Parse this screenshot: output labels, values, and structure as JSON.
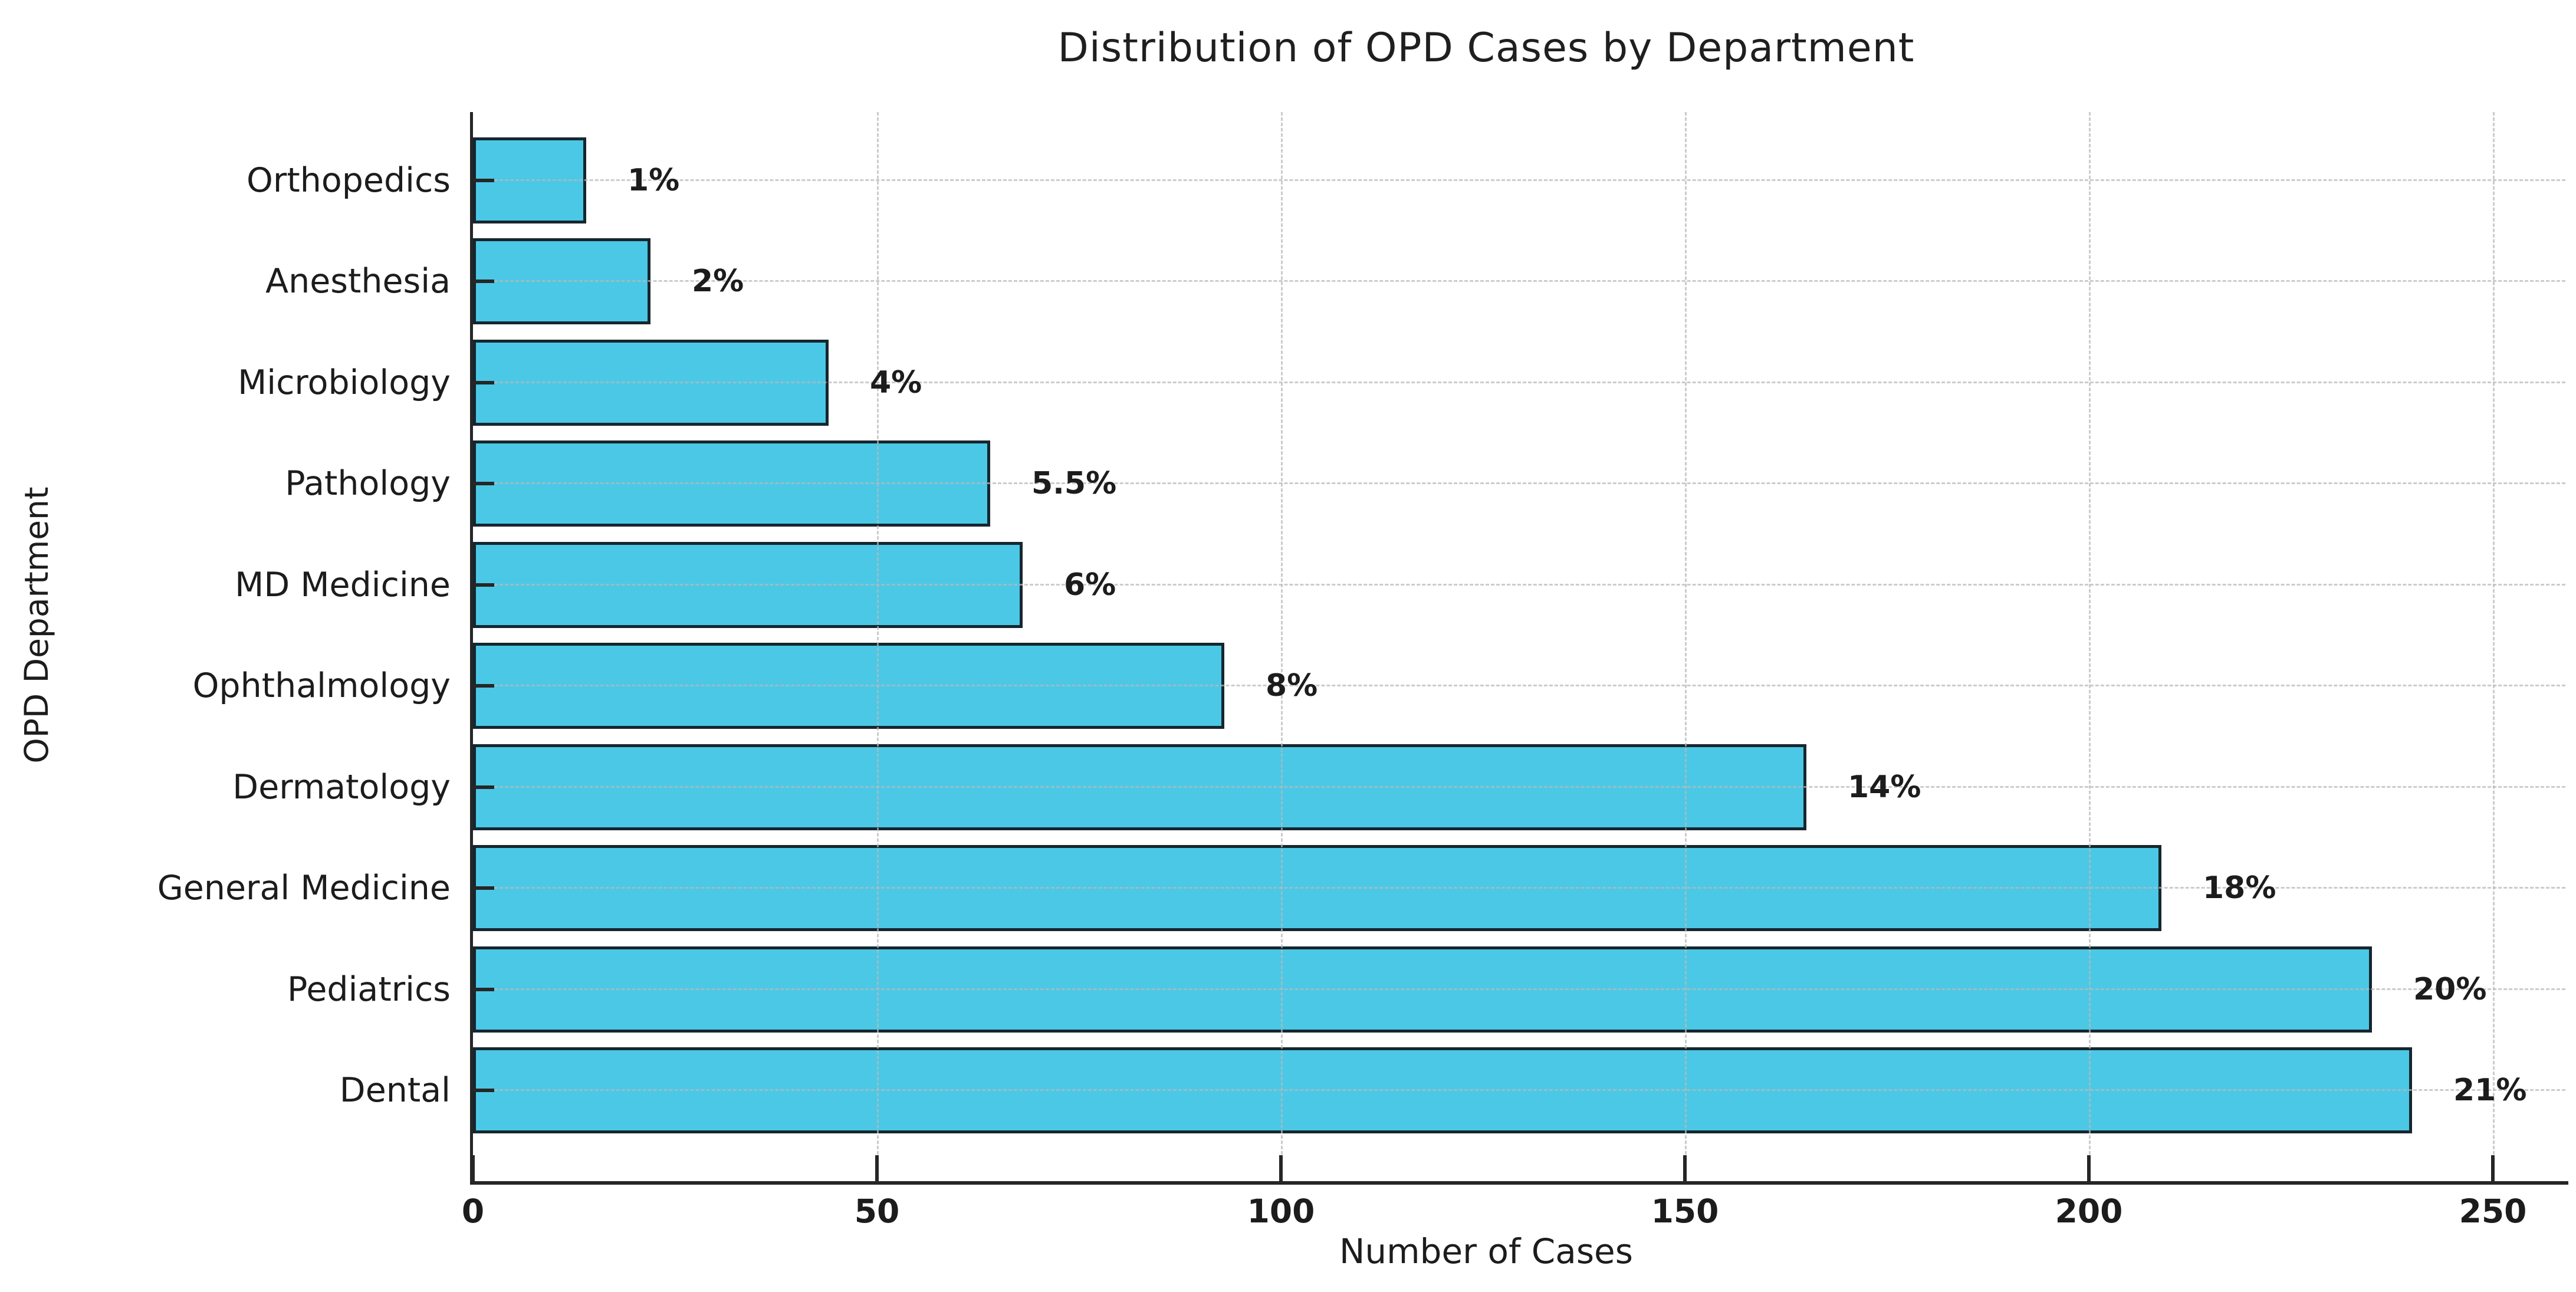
{
  "chart_data": {
    "type": "bar",
    "orientation": "horizontal",
    "title": "Distribution of OPD Cases by Department",
    "xlabel": "Number of Cases",
    "ylabel": "OPD Department",
    "categories": [
      "Orthopedics",
      "Anesthesia",
      "Microbiology",
      "Pathology",
      "MD Medicine",
      "Ophthalmology",
      "Dermatology",
      "General Medicine",
      "Pediatrics",
      "Dental"
    ],
    "values": [
      14,
      22,
      44,
      64,
      68,
      93,
      165,
      209,
      235,
      240
    ],
    "percent_labels": [
      "1%",
      "2%",
      "4%",
      "5.5%",
      "6%",
      "8%",
      "14%",
      "18%",
      "20%",
      "21%"
    ],
    "xlim": [
      0,
      250
    ],
    "xticks": [
      0,
      50,
      100,
      150,
      200,
      250
    ],
    "xtick_labels": [
      "0",
      "50",
      "100",
      "150",
      "200",
      "250"
    ],
    "grid": "dashed gray, horizontal line per bar and vertical line per x tick, drawn over bars",
    "legend": "none",
    "colors": {
      "bar_fill": "#4BC8E6",
      "bar_edge": "#16262E",
      "axis": "#262626",
      "grid": "#B9B9B9",
      "text": "#1C1C1C",
      "background": "#FFFFFF"
    }
  }
}
